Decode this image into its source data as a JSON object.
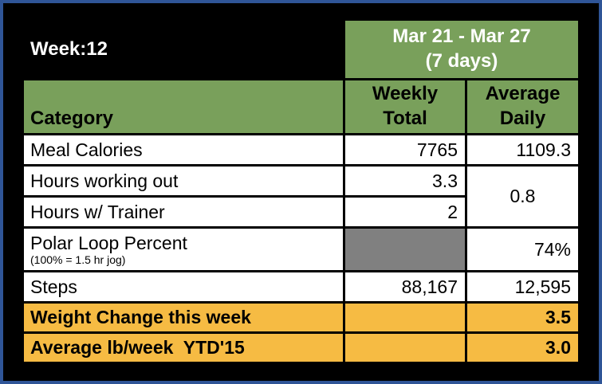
{
  "title_row": {
    "week_label": "Week:12",
    "date_range": "Mar 21 - Mar 27",
    "days_note": "(7 days)"
  },
  "column_headers": {
    "category": "Category",
    "weekly_line1": "Weekly",
    "weekly_line2": "Total",
    "daily_line1": "Average",
    "daily_line2": "Daily"
  },
  "rows": {
    "meal_calories": {
      "label": "Meal Calories",
      "weekly_total": "7765",
      "average_daily": "1109.3"
    },
    "hours_working_out": {
      "label": "Hours working out",
      "weekly_total": "3.3"
    },
    "hours_w_trainer": {
      "label": "Hours w/ Trainer",
      "weekly_total": "2"
    },
    "hours_average_daily_merged": "0.8",
    "polar_loop_percent": {
      "label": "Polar Loop Percent",
      "sublabel": "(100% = 1.5 hr jog)",
      "weekly_total": "",
      "average_daily": "74%"
    },
    "steps": {
      "label": "Steps",
      "weekly_total": "88,167",
      "average_daily": "12,595"
    }
  },
  "summary_rows": {
    "weight_change": {
      "label": "Weight Change this week",
      "value": "3.5"
    },
    "average_lb_week": {
      "label": "Average lb/week  YTD'15",
      "value": "3.0"
    }
  },
  "colors": {
    "table_green": "#79A05B",
    "table_gold": "#F6BB43",
    "gray_cell": "#808080",
    "frame_blue": "#2F5597",
    "background_black": "#000000"
  }
}
